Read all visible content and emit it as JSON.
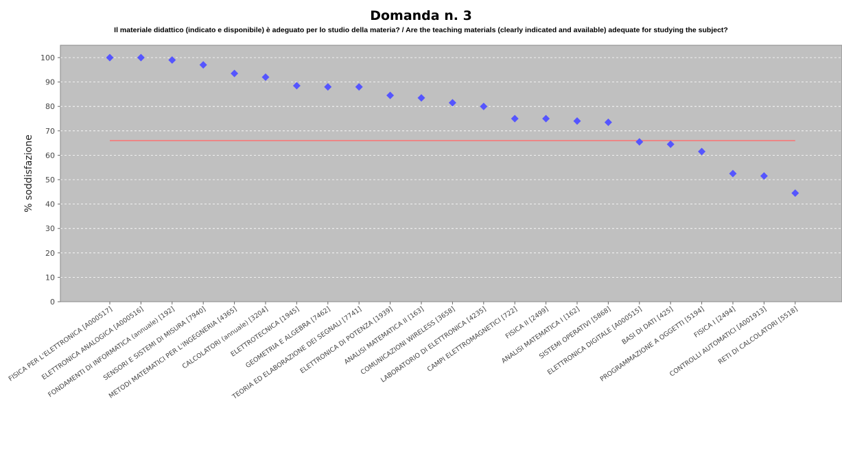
{
  "chart_data": {
    "type": "scatter",
    "title": "Domanda n. 3",
    "subtitle": "Il materiale didattico (indicato e disponibile) è adeguato per lo studio della materia? / Are the teaching materials (clearly indicated and available) adequate for studying the subject?",
    "ylabel": "% soddisfazione",
    "ylim": [
      0,
      100
    ],
    "yticks": [
      0,
      10,
      20,
      30,
      40,
      50,
      60,
      70,
      80,
      90,
      100
    ],
    "grid": true,
    "reference_line": 66,
    "categories": [
      "FISICA PER L'ELETTRONICA [A000517]",
      "ELETTRONICA ANALOGICA [A000516]",
      "FONDAMENTI DI INFORMATICA (annuale) [192]",
      "SENSORI E SISTEMI DI MISURA [7940]",
      "METODI MATEMATICI PER L'INGEGNERIA [4365]",
      "CALCOLATORI (annuale) [3204]",
      "ELETTROTECNICA [1945]",
      "GEOMETRIA E ALGEBRA [7462]",
      "TEORIA ED ELABORAZIONE DEI SEGNALI [7741]",
      "ELETTRONICA DI POTENZA [1939]",
      "ANALISI MATEMATICA II [163]",
      "COMUNICAZIONI WIRELESS [3658]",
      "LABORATORIO DI ELETTRONICA [4235]",
      "CAMPI ELETTROMAGNETICI [722]",
      "FISICA II [2499]",
      "ANALISI MATEMATICA I [162]",
      "SISTEMI OPERATIVI [5868]",
      "ELETTRONICA DIGITALE [A000515]",
      "BASI DI DATI [425]",
      "PROGRAMMAZIONE A OGGETTI [5194]",
      "FISICA I [2494]",
      "CONTROLLI AUTOMATICI [A001913]",
      "RETI DI CALCOLATORI [5518]"
    ],
    "values": [
      100,
      100,
      99,
      97,
      93.5,
      92,
      88.5,
      88,
      88,
      84.5,
      83.5,
      81.5,
      80,
      75,
      75,
      74,
      73.5,
      65.5,
      64.5,
      61.5,
      52.5,
      51.5,
      44.5
    ],
    "colors": {
      "point": "#5555ff",
      "line": "#ff6a6a",
      "plot_bg": "#c0c0c0",
      "grid": "#ffffff"
    }
  }
}
